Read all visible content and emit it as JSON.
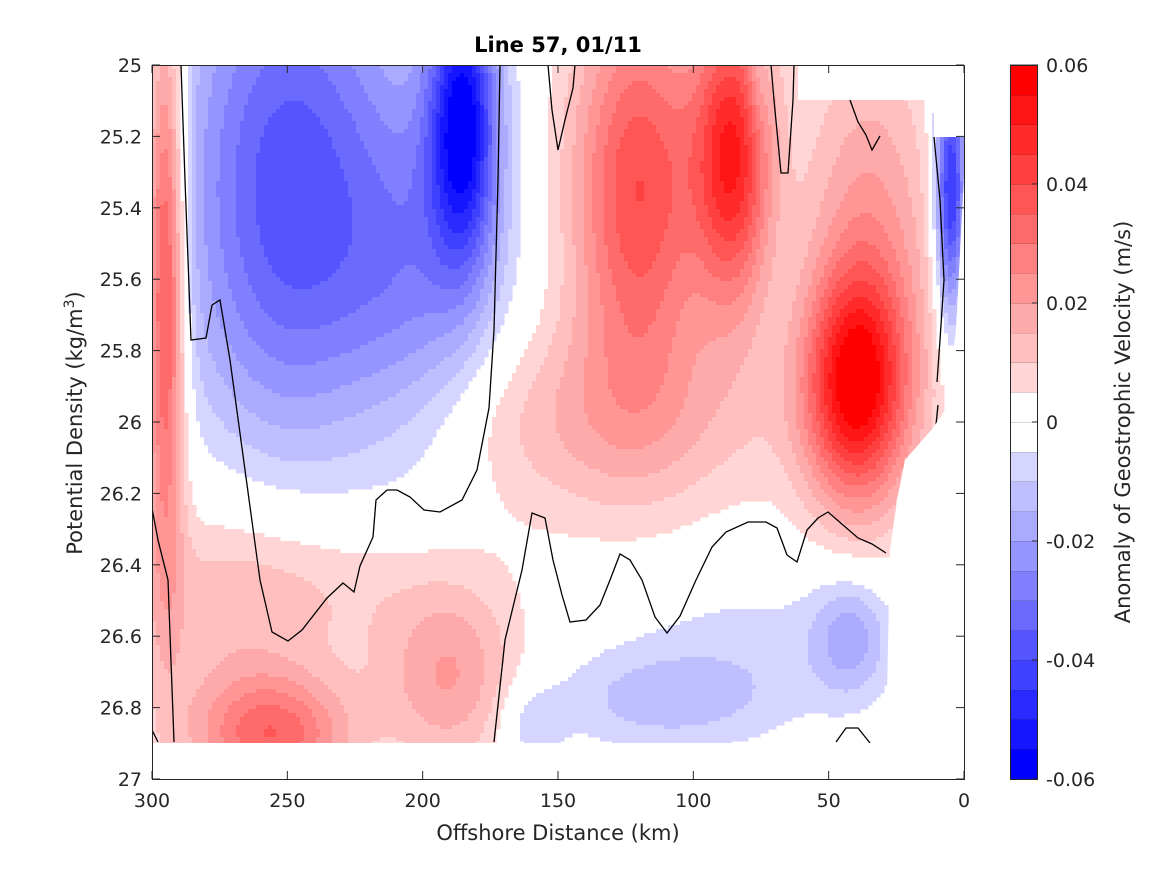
{
  "chart_data": {
    "type": "heatmap",
    "subtype": "filled-contour",
    "title": "Line 57, 01/11",
    "xlabel": "Offshore Distance (km)",
    "ylabel": "Potential Density (kg/m",
    "ylabel_superscript": "3",
    "ylabel_suffix": ")",
    "colorbar_label": "Anomaly of Geostrophic Velocity (m/s)",
    "x_reversed": true,
    "xlim": [
      0,
      300
    ],
    "ylim": [
      25,
      27
    ],
    "y_reversed": true,
    "x_ticks": [
      300,
      250,
      200,
      150,
      100,
      50,
      0
    ],
    "x_tick_labels": [
      "300",
      "250",
      "200",
      "150",
      "100",
      "50",
      "0"
    ],
    "y_ticks": [
      25,
      25.2,
      25.4,
      25.6,
      25.8,
      26,
      26.2,
      26.4,
      26.6,
      26.8,
      27
    ],
    "y_tick_labels": [
      "25",
      "25.2",
      "25.4",
      "25.6",
      "25.8",
      "26",
      "26.2",
      "26.4",
      "26.6",
      "26.8",
      "27"
    ],
    "colorbar_ticks": [
      -0.06,
      -0.04,
      -0.02,
      0,
      0.02,
      0.04,
      0.06
    ],
    "colorbar_tick_labels": [
      "-0.06",
      "-0.04",
      "-0.02",
      "0",
      "0.02",
      "0.04",
      "0.06"
    ],
    "colorbar_limits": [
      -0.06,
      0.06
    ],
    "colorbar_levels": 24,
    "colormap": "blue-white-red",
    "colors": {
      "negative": "#0000ff",
      "zero": "#ffffff",
      "positive": "#ff0000"
    },
    "grid": false,
    "contour_level": 0,
    "features": [
      {
        "kind": "positive",
        "x": 295,
        "y": 25.6,
        "sx": 5,
        "sy": 0.55,
        "v": 0.044
      },
      {
        "kind": "negative",
        "x": 250,
        "y": 25.35,
        "sx": 28,
        "sy": 0.55,
        "v": -0.038
      },
      {
        "kind": "negative",
        "x": 185,
        "y": 25.15,
        "sx": 9,
        "sy": 0.28,
        "v": -0.052
      },
      {
        "kind": "negative",
        "x": 200,
        "y": 25.6,
        "sx": 22,
        "sy": 0.4,
        "v": -0.02
      },
      {
        "kind": "positive",
        "x": 120,
        "y": 25.35,
        "sx": 18,
        "sy": 0.4,
        "v": 0.04
      },
      {
        "kind": "positive",
        "x": 85,
        "y": 25.25,
        "sx": 10,
        "sy": 0.3,
        "v": 0.046
      },
      {
        "kind": "positive",
        "x": 40,
        "y": 25.9,
        "sx": 13,
        "sy": 0.22,
        "v": 0.046
      },
      {
        "kind": "positive",
        "x": 35,
        "y": 25.55,
        "sx": 18,
        "sy": 0.45,
        "v": 0.022
      },
      {
        "kind": "positive",
        "x": 140,
        "y": 26.0,
        "sx": 55,
        "sy": 0.2,
        "v": 0.014
      },
      {
        "kind": "positive",
        "x": 255,
        "y": 26.88,
        "sx": 20,
        "sy": 0.12,
        "v": 0.03
      },
      {
        "kind": "positive",
        "x": 190,
        "y": 26.72,
        "sx": 18,
        "sy": 0.18,
        "v": 0.02
      },
      {
        "kind": "positive",
        "x": 270,
        "y": 26.55,
        "sx": 30,
        "sy": 0.3,
        "v": 0.012
      },
      {
        "kind": "positive",
        "x": 230,
        "y": 26.45,
        "sx": 40,
        "sy": 0.15,
        "v": 0.008
      },
      {
        "kind": "negative",
        "x": 110,
        "y": 26.78,
        "sx": 30,
        "sy": 0.1,
        "v": -0.012
      },
      {
        "kind": "negative",
        "x": 42,
        "y": 26.6,
        "sx": 10,
        "sy": 0.12,
        "v": -0.016
      },
      {
        "kind": "negative",
        "x": 75,
        "y": 26.6,
        "sx": 40,
        "sy": 0.15,
        "v": -0.006
      },
      {
        "kind": "negative",
        "x": 5,
        "y": 25.35,
        "sx": 4,
        "sy": 0.25,
        "v": -0.05
      },
      {
        "kind": "negative",
        "x": 160,
        "y": 26.85,
        "sx": 8,
        "sy": 0.08,
        "v": -0.01
      },
      {
        "kind": "negative",
        "x": 76,
        "y": 25.05,
        "sx": 3,
        "sy": 0.12,
        "v": -0.006
      }
    ]
  }
}
